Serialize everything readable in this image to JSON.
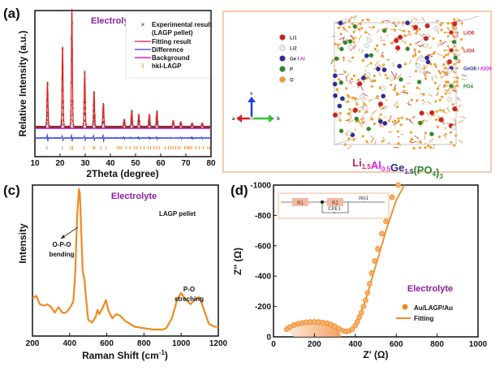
{
  "chart_data": [
    {
      "panel": "(a)",
      "type": "scatter",
      "title": "Electrolyte",
      "xlabel": "2Theta (degree)",
      "ylabel": "Relative Intensity (a.u.)",
      "xlim": [
        10,
        80
      ],
      "xticks": [
        "10",
        "20",
        "30",
        "40",
        "50",
        "60",
        "70",
        "80"
      ],
      "legend_position": "top-right",
      "legend": [
        {
          "label": "Experimental result",
          "sub": "(LAGP pellet)",
          "marker": "x",
          "color": "#222222"
        },
        {
          "label": "Fitting result",
          "marker": "line",
          "color": "#e02020"
        },
        {
          "label": "Difference",
          "marker": "line",
          "color": "#3340e0"
        },
        {
          "label": "Background",
          "marker": "line",
          "color": "#e040e0"
        },
        {
          "label": "hkl-LAGP",
          "marker": "tick",
          "color": "#f08a20"
        }
      ],
      "peaks": [
        {
          "x": 15.0,
          "rel": 0.38
        },
        {
          "x": 21.0,
          "rel": 0.68
        },
        {
          "x": 24.7,
          "rel": 1.0
        },
        {
          "x": 29.8,
          "rel": 0.47
        },
        {
          "x": 33.5,
          "rel": 0.3
        },
        {
          "x": 37.2,
          "rel": 0.2
        },
        {
          "x": 45.5,
          "rel": 0.06
        },
        {
          "x": 48.5,
          "rel": 0.14
        },
        {
          "x": 51.3,
          "rel": 0.1
        },
        {
          "x": 55.5,
          "rel": 0.1
        },
        {
          "x": 58.5,
          "rel": 0.13
        },
        {
          "x": 65.0,
          "rel": 0.05
        },
        {
          "x": 68.0,
          "rel": 0.04
        },
        {
          "x": 72.5,
          "rel": 0.03
        },
        {
          "x": 76.5,
          "rel": 0.03
        }
      ],
      "hkl_positions": [
        14.8,
        20.9,
        24.3,
        25.0,
        29.6,
        33.2,
        33.8,
        36.2,
        38.3,
        42.8,
        43.6,
        44.3,
        46.2,
        47.8,
        49.5,
        50.6,
        52.0,
        53.4,
        55.1,
        56.0,
        57.3,
        58.2,
        59.4,
        61.8,
        63.1,
        64.0,
        64.9,
        65.9,
        66.8,
        67.6,
        69.5,
        70.3,
        71.0,
        71.6,
        72.3,
        74.0,
        75.4,
        76.9,
        78.7,
        79.5
      ],
      "colors": {
        "experimental": "#222222",
        "fit": "#e02020",
        "difference": "#3340e0",
        "background": "#e040e0",
        "hkl": "#f08a20",
        "title": "#8b1f9e"
      }
    },
    {
      "panel": "(c)",
      "type": "line",
      "title": "Electrolyte",
      "annotation_sample": "LAGP pellet",
      "xlabel": "Raman Shift (cm-1)",
      "ylabel": "Intensity",
      "xlim": [
        200,
        1200
      ],
      "xticks": [
        "200",
        "400",
        "600",
        "800",
        "1000",
        "1200"
      ],
      "annotations": [
        {
          "text": [
            "O-P-O",
            "bending"
          ],
          "x": 450
        },
        {
          "text": [
            "P-O",
            "streching"
          ],
          "x": 1000
        }
      ],
      "series": [
        {
          "name": "LAGP pellet",
          "color": "#f08a20",
          "x": [
            200,
            220,
            240,
            260,
            280,
            300,
            320,
            340,
            360,
            380,
            400,
            420,
            430,
            440,
            450,
            455,
            460,
            470,
            480,
            490,
            500,
            520,
            540,
            550,
            560,
            580,
            595,
            610,
            630,
            650,
            670,
            700,
            750,
            800,
            850,
            900,
            920,
            950,
            980,
            1000,
            1020,
            1050,
            1080,
            1100,
            1120,
            1150,
            1180,
            1200
          ],
          "y": [
            0.22,
            0.24,
            0.18,
            0.17,
            0.18,
            0.16,
            0.12,
            0.16,
            0.12,
            0.12,
            0.15,
            0.2,
            0.4,
            0.8,
            1.0,
            0.97,
            0.8,
            0.42,
            0.35,
            0.2,
            0.07,
            0.05,
            0.09,
            0.14,
            0.11,
            0.16,
            0.21,
            0.13,
            0.08,
            0.11,
            0.1,
            0.06,
            0.02,
            0.01,
            0.0,
            0.0,
            0.01,
            0.08,
            0.22,
            0.26,
            0.22,
            0.18,
            0.22,
            0.23,
            0.15,
            0.04,
            0.02,
            0.02
          ]
        }
      ]
    },
    {
      "panel": "(d)",
      "type": "scatter",
      "title": "Electrolyte",
      "xlabel": "Z' (Ω)",
      "ylabel": "Z'' (Ω)",
      "xlim": [
        0,
        1000
      ],
      "ylim": [
        0,
        -1000
      ],
      "xticks": [
        "0",
        "200",
        "400",
        "600",
        "800",
        "1000"
      ],
      "yticks": [
        "0",
        "-200",
        "-400",
        "-600",
        "-800",
        "-1000"
      ],
      "legend_position": "bottom-right",
      "legend": [
        {
          "label": "Au/LAGP/Au",
          "marker": "circle",
          "color": "#f08a20"
        },
        {
          "label": "Fitting",
          "marker": "line",
          "color": "#f08a20"
        }
      ],
      "inset_circuit": [
        "R1",
        "R2",
        "CPE1",
        "Wo1"
      ],
      "series": [
        {
          "name": "Au/LAGP/Au",
          "x": [
            65,
            80,
            100,
            120,
            140,
            160,
            180,
            200,
            220,
            240,
            260,
            280,
            300,
            320,
            340,
            355,
            370,
            385,
            400,
            410,
            420,
            430,
            440,
            450,
            460,
            470,
            480,
            495,
            510,
            530,
            550,
            580,
            610
          ],
          "y": [
            -50,
            -65,
            -78,
            -86,
            -92,
            -96,
            -98,
            -99,
            -98,
            -95,
            -90,
            -82,
            -70,
            -55,
            -40,
            -35,
            -38,
            -50,
            -75,
            -100,
            -130,
            -160,
            -200,
            -240,
            -290,
            -350,
            -420,
            -500,
            -580,
            -680,
            -760,
            -920,
            -1000
          ]
        },
        {
          "name": "Fitting",
          "x": [
            65,
            100,
            150,
            200,
            250,
            300,
            340,
            360,
            380,
            400,
            450,
            500,
            550,
            600,
            640
          ],
          "y": [
            -50,
            -78,
            -94,
            -99,
            -93,
            -70,
            -40,
            -35,
            -45,
            -75,
            -240,
            -470,
            -700,
            -900,
            -1010
          ]
        }
      ],
      "colors": {
        "data": "#f08a20",
        "inset_border": "#f5b894",
        "inset_box": "#f7b8a0",
        "title": "#8b1f9e"
      }
    }
  ],
  "panel_b": {
    "letter": "(b)",
    "legend_atoms": [
      {
        "label": "Li1",
        "color": "#d02020"
      },
      {
        "label": "Li2",
        "color": "#e8e8e8"
      },
      {
        "label": "Ge / ",
        "label2": "Al",
        "color": "#2a2aa0",
        "color2": "#e020e0"
      },
      {
        "label": "P",
        "color": "#2a8a2a"
      },
      {
        "label": "O",
        "color": "#f0a030"
      }
    ],
    "legend_polyhedra": [
      {
        "label": "LiO6",
        "color": "#d02020"
      },
      {
        "label": "LiO4",
        "color": "#d02020"
      },
      {
        "label": "GeO6 / ",
        "label2": "AlO6",
        "color": "#2a2aa0",
        "color2": "#e020e0"
      },
      {
        "label": "PO4",
        "color": "#2a8a2a"
      }
    ],
    "axes": [
      "a",
      "b",
      "c"
    ],
    "formula": {
      "parts": [
        {
          "text": "Li",
          "sub": "1.5",
          "color": "#d0205a"
        },
        {
          "text": "Al",
          "sub": "0.5",
          "color": "#e020e0"
        },
        {
          "text": "Ge",
          "sub": "1.5",
          "color": "#2a2a80"
        },
        {
          "text": "(PO",
          "sub": "4",
          "color": "#2a8a2a"
        },
        {
          "text": ")",
          "sub": "3",
          "color": "#2a8a2a"
        }
      ]
    },
    "border_color": "#f5b894"
  },
  "panel_letters": {
    "a": "(a)",
    "b": "(b)",
    "c": "(c)",
    "d": "(d)"
  }
}
